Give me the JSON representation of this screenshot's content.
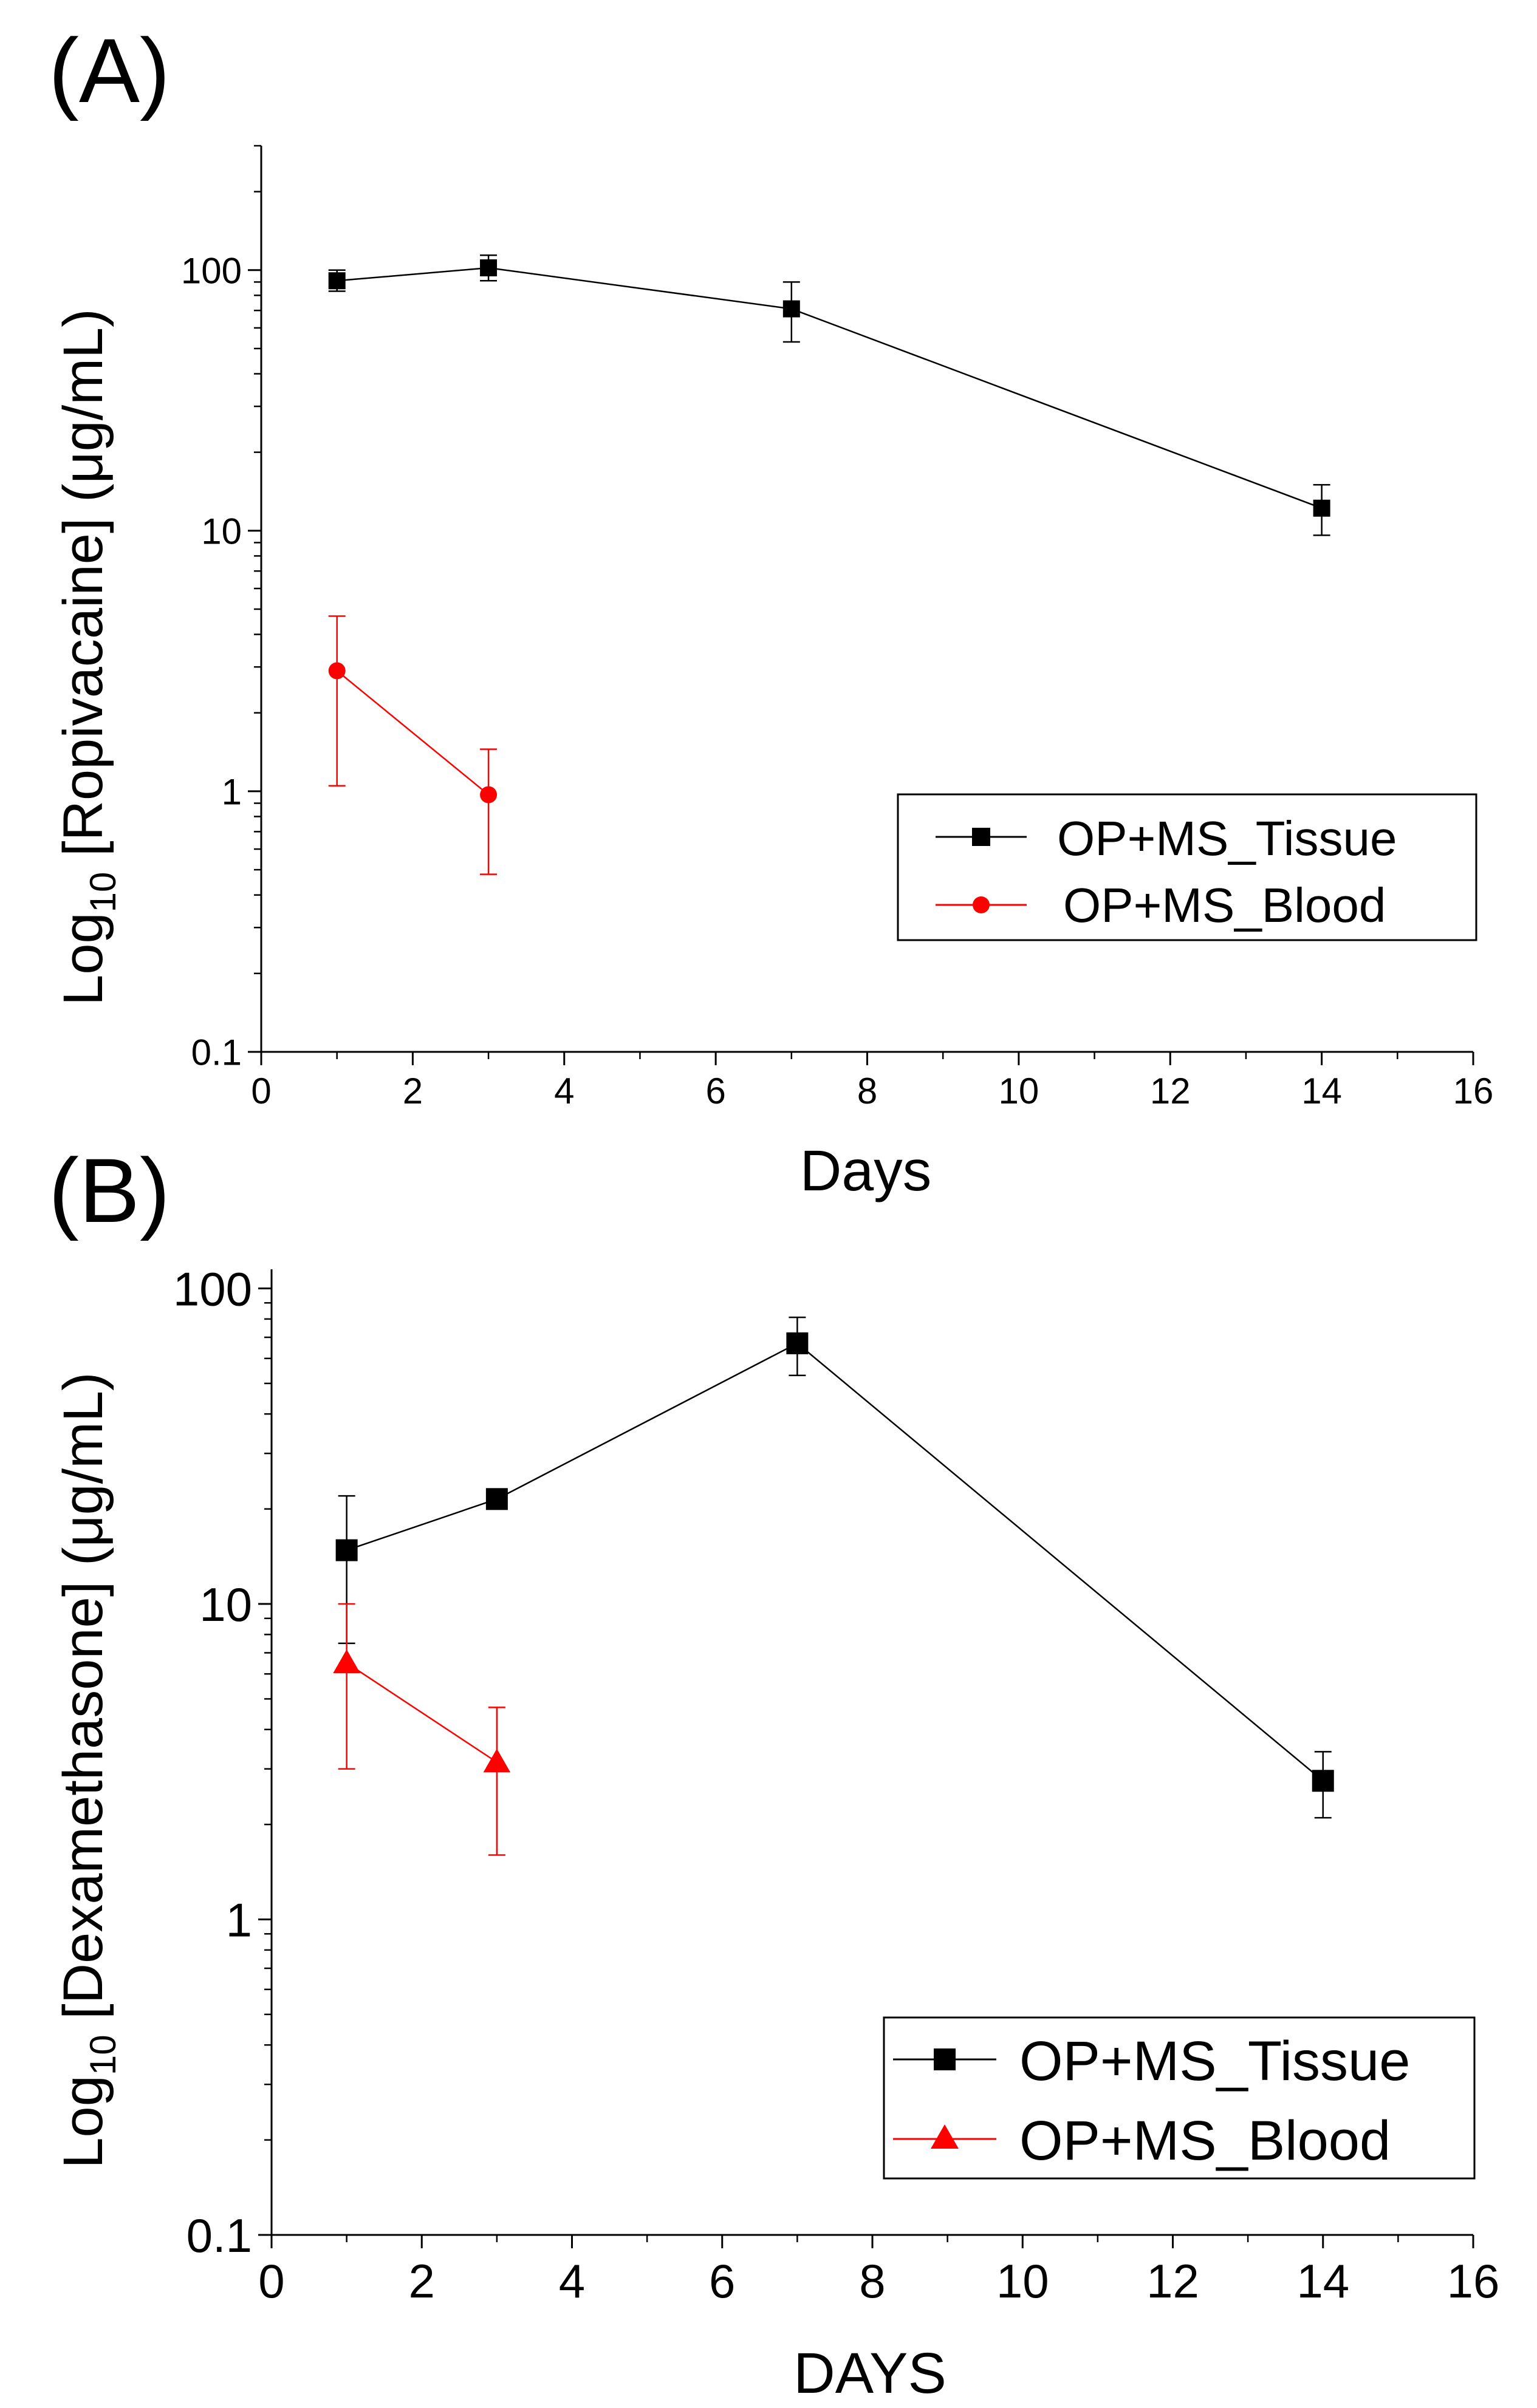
{
  "colors": {
    "tissue": "#000000",
    "blood": "#ff0000",
    "axis": "#000000",
    "background": "#ffffff"
  },
  "chart_data": [
    {
      "panel_label": "(A)",
      "type": "line",
      "yscale": "log",
      "xlabel": "Days",
      "ylabel_prefix": "Log",
      "ylabel_subscript": "10",
      "ylabel_rest": " [Ropivacaine] (μg/mL)",
      "xlim": [
        0,
        16
      ],
      "ylim": [
        0.1,
        300
      ],
      "xticks": [
        0,
        2,
        4,
        6,
        8,
        10,
        12,
        14,
        16
      ],
      "xtick_labels": [
        "0",
        "2",
        "4",
        "6",
        "8",
        "10",
        "12",
        "14",
        "16"
      ],
      "yticks": [
        0.1,
        1,
        10,
        100
      ],
      "ytick_labels": [
        "0.1",
        "1",
        "10",
        "100"
      ],
      "legend_position": "right",
      "series": [
        {
          "name": "OP+MS_Tissue",
          "marker": "square",
          "color": "#000000",
          "x": [
            1,
            3,
            7,
            14
          ],
          "y": [
            91,
            102,
            71,
            12.2
          ],
          "err_low": [
            83,
            91,
            53,
            9.6
          ],
          "err_high": [
            100,
            114,
            90,
            15
          ]
        },
        {
          "name": "OP+MS_Blood",
          "marker": "circle",
          "color": "#ff0000",
          "x": [
            1,
            3
          ],
          "y": [
            2.9,
            0.97
          ],
          "err_low": [
            1.05,
            0.48
          ],
          "err_high": [
            4.7,
            1.45
          ]
        }
      ]
    },
    {
      "panel_label": "(B)",
      "type": "line",
      "yscale": "log",
      "xlabel": "DAYS",
      "ylabel_prefix": "Log",
      "ylabel_subscript": "10",
      "ylabel_rest": " [Dexamethasone] (μg/mL)",
      "xlim": [
        0,
        16
      ],
      "ylim": [
        0.1,
        115
      ],
      "xticks": [
        0,
        2,
        4,
        6,
        8,
        10,
        12,
        14,
        16
      ],
      "xtick_labels": [
        "0",
        "2",
        "4",
        "6",
        "8",
        "10",
        "12",
        "14",
        "16"
      ],
      "yticks": [
        0.1,
        1,
        10,
        100
      ],
      "ytick_labels": [
        "0.1",
        "1",
        "10",
        "100"
      ],
      "legend_position": "bottom-right",
      "series": [
        {
          "name": "OP+MS_Tissue",
          "marker": "square",
          "color": "#000000",
          "x": [
            1,
            3,
            7,
            14
          ],
          "y": [
            14.8,
            21.5,
            67,
            2.75
          ],
          "err_low": [
            7.5,
            20.5,
            53,
            2.1
          ],
          "err_high": [
            22,
            22.5,
            81,
            3.4
          ]
        },
        {
          "name": "OP+MS_Blood",
          "marker": "triangle",
          "color": "#ff0000",
          "x": [
            1,
            3
          ],
          "y": [
            6.5,
            3.15
          ],
          "err_low": [
            3.0,
            1.6
          ],
          "err_high": [
            10,
            4.7
          ]
        }
      ]
    }
  ]
}
